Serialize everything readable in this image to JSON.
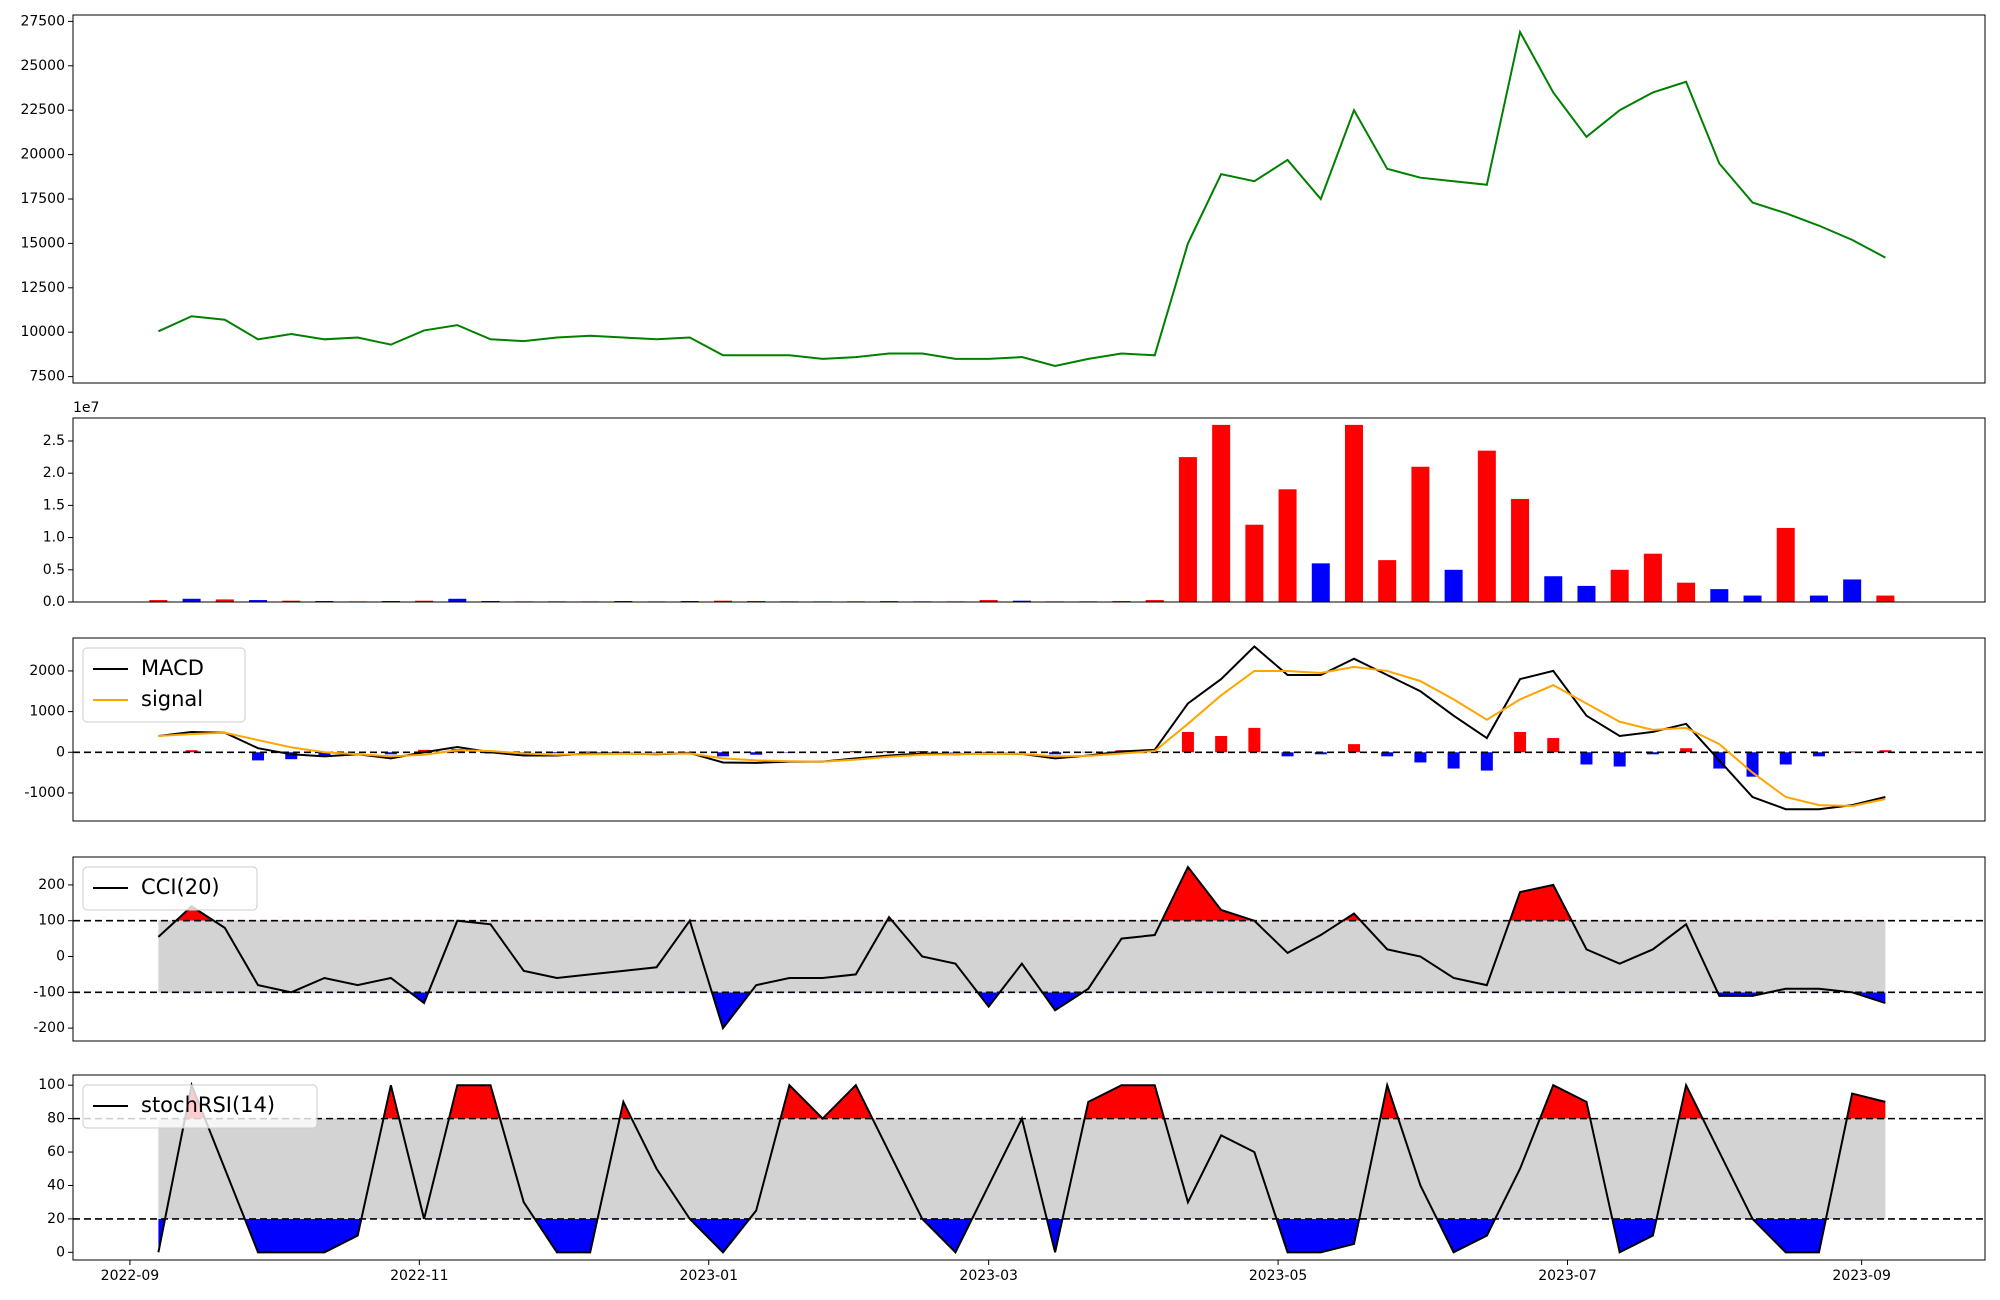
{
  "chart_data": [
    {
      "type": "line",
      "color": "#008000",
      "x": [
        "2022-09-07",
        "2022-09-14",
        "2022-09-21",
        "2022-09-28",
        "2022-10-05",
        "2022-10-12",
        "2022-10-19",
        "2022-10-26",
        "2022-11-02",
        "2022-11-09",
        "2022-11-16",
        "2022-11-23",
        "2022-11-30",
        "2022-12-07",
        "2022-12-14",
        "2022-12-21",
        "2022-12-28",
        "2023-01-04",
        "2023-01-11",
        "2023-01-18",
        "2023-01-25",
        "2023-02-01",
        "2023-02-08",
        "2023-02-15",
        "2023-02-22",
        "2023-03-01",
        "2023-03-08",
        "2023-03-15",
        "2023-03-22",
        "2023-03-29",
        "2023-04-05",
        "2023-04-12",
        "2023-04-19",
        "2023-04-26",
        "2023-05-03",
        "2023-05-10",
        "2023-05-17",
        "2023-05-24",
        "2023-05-31",
        "2023-06-07",
        "2023-06-14",
        "2023-06-21",
        "2023-06-28",
        "2023-07-05",
        "2023-07-12",
        "2023-07-19",
        "2023-07-26",
        "2023-08-02",
        "2023-08-09",
        "2023-08-16",
        "2023-08-23",
        "2023-08-30",
        "2023-09-06"
      ],
      "values": [
        10050,
        10900,
        10700,
        9600,
        9900,
        9600,
        9700,
        9300,
        10100,
        10400,
        9600,
        9500,
        9700,
        9800,
        9700,
        9600,
        9700,
        8700,
        8700,
        8700,
        8500,
        8600,
        8800,
        8800,
        8500,
        8500,
        8600,
        8100,
        8500,
        8800,
        8700,
        15000,
        18900,
        18500,
        19700,
        17500,
        22500,
        19200,
        18700,
        18500,
        18300,
        26900,
        23500,
        21000,
        22500,
        23500,
        24100,
        19500,
        17300,
        16700,
        16000,
        15200,
        14200
      ],
      "xlim": [
        "2022-08-20",
        "2023-09-27"
      ],
      "ylim": [
        7140,
        27860
      ],
      "yticks": [
        7500,
        10000,
        12500,
        15000,
        17500,
        20000,
        22500,
        25000,
        27500
      ]
    },
    {
      "type": "bar",
      "offset_label": "1e7",
      "x": [
        "2022-09-07",
        "2022-09-14",
        "2022-09-21",
        "2022-09-28",
        "2022-10-05",
        "2022-10-12",
        "2022-10-19",
        "2022-10-26",
        "2022-11-02",
        "2022-11-09",
        "2022-11-16",
        "2022-11-23",
        "2022-11-30",
        "2022-12-07",
        "2022-12-14",
        "2022-12-21",
        "2022-12-28",
        "2023-01-04",
        "2023-01-11",
        "2023-01-18",
        "2023-01-25",
        "2023-02-01",
        "2023-02-08",
        "2023-02-15",
        "2023-02-22",
        "2023-03-01",
        "2023-03-08",
        "2023-03-15",
        "2023-03-22",
        "2023-03-29",
        "2023-04-05",
        "2023-04-12",
        "2023-04-19",
        "2023-04-26",
        "2023-05-03",
        "2023-05-10",
        "2023-05-17",
        "2023-05-24",
        "2023-05-31",
        "2023-06-07",
        "2023-06-14",
        "2023-06-21",
        "2023-06-28",
        "2023-07-05",
        "2023-07-12",
        "2023-07-19",
        "2023-07-26",
        "2023-08-02",
        "2023-08-09",
        "2023-08-16",
        "2023-08-23",
        "2023-08-30",
        "2023-09-06"
      ],
      "values": [
        300000,
        500000,
        400000,
        300000,
        200000,
        150000,
        100000,
        150000,
        200000,
        500000,
        150000,
        100000,
        100000,
        100000,
        150000,
        100000,
        150000,
        200000,
        150000,
        100000,
        100000,
        100000,
        150000,
        100000,
        100000,
        300000,
        200000,
        100000,
        100000,
        150000,
        300000,
        22500000,
        27500000,
        12000000,
        17500000,
        6000000,
        27500000,
        6500000,
        21000000,
        5000000,
        23500000,
        16000000,
        4000000,
        2500000,
        5000000,
        7500000,
        3000000,
        2000000,
        1000000,
        11500000,
        1000000,
        3500000,
        1000000
      ],
      "colors": [
        "red",
        "blue",
        "red",
        "blue",
        "red",
        "blue",
        "red",
        "blue",
        "red",
        "blue",
        "blue",
        "red",
        "blue",
        "red",
        "blue",
        "red",
        "blue",
        "red",
        "red",
        "blue",
        "red",
        "blue",
        "red",
        "blue",
        "red",
        "red",
        "blue",
        "red",
        "blue",
        "red",
        "red",
        "red",
        "red",
        "red",
        "red",
        "blue",
        "red",
        "red",
        "red",
        "blue",
        "red",
        "red",
        "blue",
        "blue",
        "red",
        "red",
        "red",
        "blue",
        "blue",
        "red",
        "blue",
        "blue",
        "red"
      ],
      "xlim": [
        "2022-08-20",
        "2023-09-27"
      ],
      "ylim": [
        0,
        28570000
      ],
      "yticks": [
        {
          "value": 0,
          "label": "0.0"
        },
        {
          "value": 5000000,
          "label": "0.5"
        },
        {
          "value": 10000000,
          "label": "1.0"
        },
        {
          "value": 15000000,
          "label": "1.5"
        },
        {
          "value": 20000000,
          "label": "2.0"
        },
        {
          "value": 25000000,
          "label": "2.5"
        }
      ]
    },
    {
      "type": "macd",
      "x": [
        "2022-09-07",
        "2022-09-14",
        "2022-09-21",
        "2022-09-28",
        "2022-10-05",
        "2022-10-12",
        "2022-10-19",
        "2022-10-26",
        "2022-11-02",
        "2022-11-09",
        "2022-11-16",
        "2022-11-23",
        "2022-11-30",
        "2022-12-07",
        "2022-12-14",
        "2022-12-21",
        "2022-12-28",
        "2023-01-04",
        "2023-01-11",
        "2023-01-18",
        "2023-01-25",
        "2023-02-01",
        "2023-02-08",
        "2023-02-15",
        "2023-02-22",
        "2023-03-01",
        "2023-03-08",
        "2023-03-15",
        "2023-03-22",
        "2023-03-29",
        "2023-04-05",
        "2023-04-12",
        "2023-04-19",
        "2023-04-26",
        "2023-05-03",
        "2023-05-10",
        "2023-05-17",
        "2023-05-24",
        "2023-05-31",
        "2023-06-07",
        "2023-06-14",
        "2023-06-21",
        "2023-06-28",
        "2023-07-05",
        "2023-07-12",
        "2023-07-19",
        "2023-07-26",
        "2023-08-02",
        "2023-08-09",
        "2023-08-16",
        "2023-08-23",
        "2023-08-30",
        "2023-09-06"
      ],
      "series": [
        {
          "name": "MACD",
          "color": "#000000",
          "values": [
            400,
            500,
            480,
            100,
            -50,
            -100,
            -50,
            -150,
            0,
            130,
            0,
            -80,
            -80,
            -30,
            -30,
            -50,
            -20,
            -250,
            -260,
            -230,
            -230,
            -150,
            -80,
            -30,
            -50,
            -30,
            -40,
            -150,
            -80,
            20,
            60,
            1200,
            1800,
            2600,
            1900,
            1900,
            2300,
            1900,
            1500,
            900,
            350,
            1800,
            2000,
            900,
            400,
            500,
            700,
            -200,
            -1100,
            -1400,
            -1400,
            -1300,
            -1100
          ]
        },
        {
          "name": "signal",
          "color": "#ffa500",
          "values": [
            400,
            450,
            480,
            300,
            120,
            0,
            -50,
            -100,
            -60,
            50,
            30,
            -30,
            -60,
            -50,
            -40,
            -40,
            -30,
            -150,
            -200,
            -220,
            -230,
            -180,
            -110,
            -60,
            -50,
            -40,
            -40,
            -100,
            -90,
            -30,
            30,
            700,
            1400,
            2000,
            2000,
            1950,
            2100,
            2000,
            1750,
            1300,
            800,
            1300,
            1650,
            1200,
            750,
            550,
            600,
            200,
            -500,
            -1100,
            -1300,
            -1320,
            -1150
          ]
        }
      ],
      "histogram": {
        "positive_color": "red",
        "negative_color": "blue",
        "values": [
          0,
          50,
          0,
          -200,
          -170,
          -100,
          0,
          -50,
          60,
          80,
          -30,
          -50,
          -20,
          20,
          10,
          -10,
          10,
          -100,
          -60,
          -10,
          0,
          30,
          30,
          30,
          -10,
          10,
          0,
          -50,
          10,
          50,
          30,
          500,
          400,
          600,
          -100,
          -50,
          200,
          -100,
          -250,
          -400,
          -450,
          500,
          350,
          -300,
          -350,
          -50,
          100,
          -400,
          -600,
          -300,
          -100,
          20,
          50
        ]
      },
      "reference_lines": [
        0
      ],
      "xlim": [
        "2022-08-20",
        "2023-09-27"
      ],
      "ylim": [
        -1690,
        2810
      ],
      "yticks": [
        -1000,
        0,
        1000,
        2000
      ]
    },
    {
      "type": "oscillator",
      "band_color": "#d3d3d3",
      "upper_fill": "red",
      "lower_fill": "blue",
      "x": [
        "2022-09-07",
        "2022-09-14",
        "2022-09-21",
        "2022-09-28",
        "2022-10-05",
        "2022-10-12",
        "2022-10-19",
        "2022-10-26",
        "2022-11-02",
        "2022-11-09",
        "2022-11-16",
        "2022-11-23",
        "2022-11-30",
        "2022-12-07",
        "2022-12-14",
        "2022-12-21",
        "2022-12-28",
        "2023-01-04",
        "2023-01-11",
        "2023-01-18",
        "2023-01-25",
        "2023-02-01",
        "2023-02-08",
        "2023-02-15",
        "2023-02-22",
        "2023-03-01",
        "2023-03-08",
        "2023-03-15",
        "2023-03-22",
        "2023-03-29",
        "2023-04-05",
        "2023-04-12",
        "2023-04-19",
        "2023-04-26",
        "2023-05-03",
        "2023-05-10",
        "2023-05-17",
        "2023-05-24",
        "2023-05-31",
        "2023-06-07",
        "2023-06-14",
        "2023-06-21",
        "2023-06-28",
        "2023-07-05",
        "2023-07-12",
        "2023-07-19",
        "2023-07-26",
        "2023-08-02",
        "2023-08-09",
        "2023-08-16",
        "2023-08-23",
        "2023-08-30",
        "2023-09-06"
      ],
      "series": [
        {
          "name": "CCI(20)",
          "color": "#000000",
          "values": [
            55,
            140,
            80,
            -80,
            -100,
            -60,
            -80,
            -60,
            -130,
            100,
            90,
            -40,
            -60,
            -50,
            -40,
            -30,
            100,
            -200,
            -80,
            -60,
            -60,
            -50,
            110,
            0,
            -20,
            -140,
            -20,
            -150,
            -90,
            50,
            60,
            250,
            130,
            100,
            10,
            60,
            120,
            20,
            0,
            -60,
            -80,
            180,
            200,
            20,
            -20,
            20,
            90,
            -110,
            -110,
            -90,
            -90,
            -100,
            -130
          ]
        }
      ],
      "thresholds": [
        100,
        -100
      ],
      "xlim": [
        "2022-08-20",
        "2023-09-27"
      ],
      "ylim": [
        -236,
        278
      ],
      "yticks": [
        -200,
        -100,
        0,
        100,
        200
      ]
    },
    {
      "type": "oscillator",
      "band_color": "#d3d3d3",
      "upper_fill": "red",
      "lower_fill": "blue",
      "x": [
        "2022-09-07",
        "2022-09-14",
        "2022-09-21",
        "2022-09-28",
        "2022-10-05",
        "2022-10-12",
        "2022-10-19",
        "2022-10-26",
        "2022-11-02",
        "2022-11-09",
        "2022-11-16",
        "2022-11-23",
        "2022-11-30",
        "2022-12-07",
        "2022-12-14",
        "2022-12-21",
        "2022-12-28",
        "2023-01-04",
        "2023-01-11",
        "2023-01-18",
        "2023-01-25",
        "2023-02-01",
        "2023-02-08",
        "2023-02-15",
        "2023-02-22",
        "2023-03-01",
        "2023-03-08",
        "2023-03-15",
        "2023-03-22",
        "2023-03-29",
        "2023-04-05",
        "2023-04-12",
        "2023-04-19",
        "2023-04-26",
        "2023-05-03",
        "2023-05-10",
        "2023-05-17",
        "2023-05-24",
        "2023-05-31",
        "2023-06-07",
        "2023-06-14",
        "2023-06-21",
        "2023-06-28",
        "2023-07-05",
        "2023-07-12",
        "2023-07-19",
        "2023-07-26",
        "2023-08-02",
        "2023-08-09",
        "2023-08-16",
        "2023-08-23",
        "2023-08-30",
        "2023-09-06"
      ],
      "series": [
        {
          "name": "stochRSI(14)",
          "color": "#000000",
          "values": [
            0,
            100,
            50,
            0,
            0,
            0,
            10,
            100,
            20,
            100,
            100,
            30,
            0,
            0,
            90,
            50,
            20,
            0,
            25,
            100,
            80,
            100,
            60,
            20,
            0,
            40,
            80,
            0,
            90,
            100,
            100,
            30,
            70,
            60,
            0,
            0,
            5,
            100,
            40,
            0,
            10,
            50,
            100,
            90,
            0,
            10,
            100,
            60,
            20,
            0,
            0,
            95,
            90
          ]
        }
      ],
      "thresholds": [
        80,
        20
      ],
      "xlim": [
        "2022-08-20",
        "2023-09-27"
      ],
      "ylim": [
        -4.6,
        106.1
      ],
      "yticks": [
        0,
        20,
        40,
        60,
        80,
        100
      ],
      "xticks": [
        {
          "value": "2022-09-01",
          "label": "2022-09"
        },
        {
          "value": "2022-11-01",
          "label": "2022-11"
        },
        {
          "value": "2023-01-01",
          "label": "2023-01"
        },
        {
          "value": "2023-03-01",
          "label": "2023-03"
        },
        {
          "value": "2023-05-01",
          "label": "2023-05"
        },
        {
          "value": "2023-07-01",
          "label": "2023-07"
        },
        {
          "value": "2023-09-01",
          "label": "2023-09"
        }
      ]
    }
  ]
}
